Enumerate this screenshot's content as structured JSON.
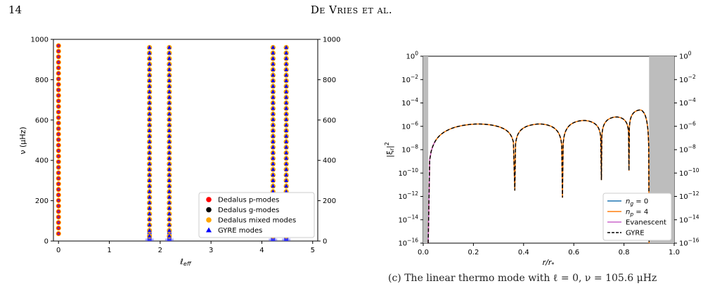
{
  "header": {
    "page_number": "14",
    "running_title": "De Vries et al."
  },
  "caption_fragment": "(c) The linear thermo mode with ℓ = 0, ν = 105.6 μHz",
  "chart_data": [
    {
      "type": "scatter",
      "xlabel": "ℓ_eff",
      "ylabel": "ν (μHz)",
      "xlim": [
        -0.1,
        5.1
      ],
      "ylim": [
        0,
        1000
      ],
      "xticks": [
        "0",
        "1",
        "2",
        "3",
        "4",
        "5"
      ],
      "yticks": [
        "0",
        "200",
        "400",
        "600",
        "800",
        "1000"
      ],
      "legend_position": "lower-right",
      "columns_x": [
        0.0,
        1.79,
        2.18,
        4.22,
        4.48
      ],
      "series": [
        {
          "name": "Dedalus p-modes",
          "color": "#ff0000",
          "marker": "circle"
        },
        {
          "name": "Dedalus g-modes",
          "color": "#000000",
          "marker": "circle"
        },
        {
          "name": "Dedalus mixed modes",
          "color": "#ffa500",
          "marker": "circle"
        },
        {
          "name": "GYRE modes",
          "color": "#0000ff",
          "marker": "triangle"
        }
      ],
      "column_0_frequencies_start": 36.8,
      "column_0_spacing": 27.4,
      "column_0_count": 35,
      "shoulder_columns_frequencies_start": 24.7,
      "shoulder_columns_spacing": 27.5,
      "shoulder_columns_count": 35
    },
    {
      "type": "line",
      "xlabel": "r/r*",
      "ylabel": "|ξr|²",
      "xlim": [
        0.0,
        1.0
      ],
      "ylim_log10": [
        -16,
        0
      ],
      "xticks": [
        "0.0",
        "0.2",
        "0.4",
        "0.6",
        "0.8",
        "1.0"
      ],
      "ytick_exponents": [
        0,
        -2,
        -4,
        -6,
        -8,
        -10,
        -12,
        -14,
        -16
      ],
      "shaded_regions": [
        [
          0.0,
          0.02
        ],
        [
          0.9,
          1.0
        ]
      ],
      "legend_position": "lower-right",
      "series": [
        {
          "name": "n_g = 0",
          "color": "#1f77b4",
          "style": "solid"
        },
        {
          "name": "n_p = 4",
          "color": "#ff7f0e",
          "style": "solid"
        },
        {
          "name": "Evanescent",
          "color": "#cc66cc",
          "style": "solid"
        },
        {
          "name": "GYRE",
          "color": "#000000",
          "style": "dashed"
        }
      ],
      "nodes_r": [
        0.02,
        0.365,
        0.555,
        0.71,
        0.82,
        0.9
      ],
      "lobe_peaks": [
        {
          "r": 0.22,
          "log10": -5.8
        },
        {
          "r": 0.465,
          "log10": -5.8
        },
        {
          "r": 0.64,
          "log10": -5.5
        },
        {
          "r": 0.77,
          "log10": -5.2
        },
        {
          "r": 0.865,
          "log10": -4.6
        }
      ],
      "node_depths_log10": [
        -16,
        -11.5,
        -12.1,
        -10.6,
        -9.8,
        -16
      ]
    }
  ]
}
